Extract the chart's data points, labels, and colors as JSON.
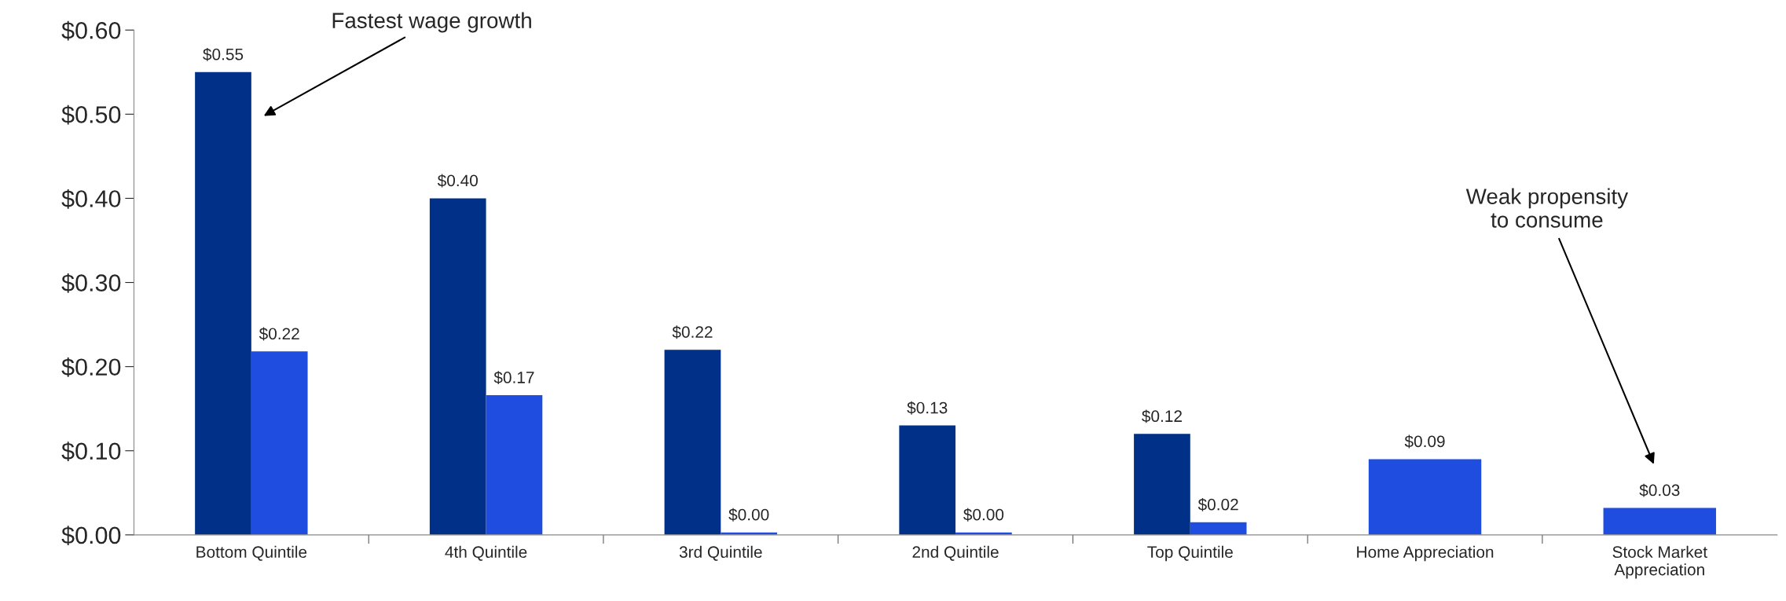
{
  "chart_data": {
    "type": "bar",
    "categories": [
      "Bottom Quintile",
      "4th Quintile",
      "3rd Quintile",
      "2nd Quintile",
      "Top Quintile",
      "Home Appreciation",
      "Stock Market\nAppreciation"
    ],
    "series": [
      {
        "color": "#003087",
        "values": [
          0.55,
          0.4,
          0.22,
          0.13,
          0.12,
          null,
          null
        ],
        "value_labels": [
          "$0.55",
          "$0.40",
          "$0.22",
          "$0.13",
          "$0.12",
          null,
          null
        ]
      },
      {
        "color": "#1f4de0",
        "values": [
          0.218,
          0.166,
          0.003,
          0.003,
          0.015,
          0.09,
          0.032
        ],
        "value_labels": [
          "$0.22",
          "$0.17",
          "$0.00",
          "$0.00",
          "$0.02",
          "$0.09",
          "$0.03"
        ]
      }
    ],
    "ylim": [
      0,
      0.6
    ],
    "yticks": [
      {
        "value": 0,
        "label": "$0.00"
      },
      {
        "value": 0.1,
        "label": "$0.10"
      },
      {
        "value": 0.2,
        "label": "$0.20"
      },
      {
        "value": 0.3,
        "label": "$0.30"
      },
      {
        "value": 0.4,
        "label": "$0.40"
      },
      {
        "value": 0.5,
        "label": "$0.50"
      },
      {
        "value": 0.6,
        "label": "$0.60"
      }
    ],
    "grid": false,
    "legend": false,
    "annotations": [
      "Fastest wage growth",
      "Weak propensity\nto consume"
    ]
  }
}
